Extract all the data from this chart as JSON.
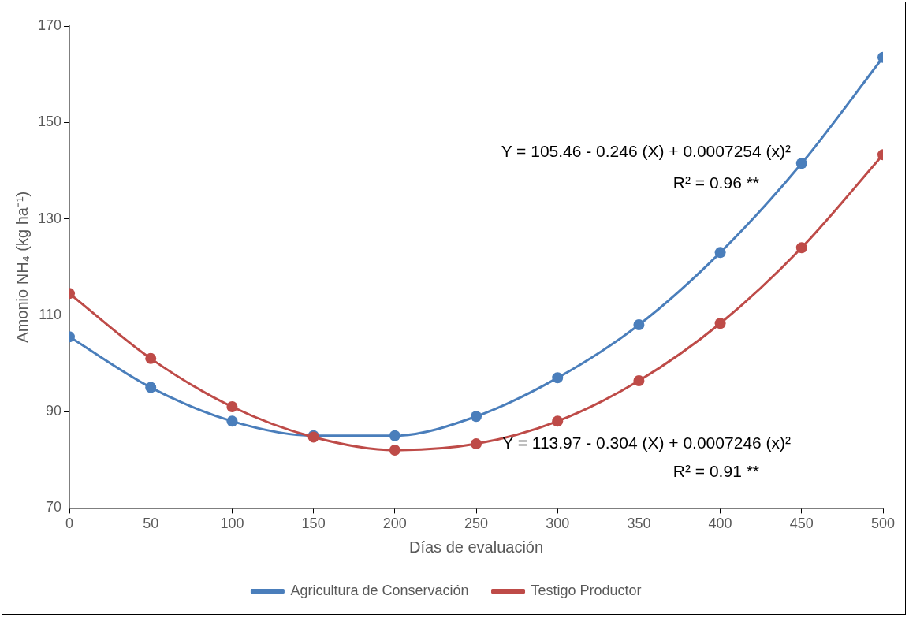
{
  "chart_data": {
    "type": "line",
    "xlabel": "Días de evaluación",
    "ylabel": "Amonio NH₄ (kg ha⁻¹)",
    "x": [
      0,
      50,
      100,
      150,
      200,
      250,
      300,
      350,
      400,
      450,
      500
    ],
    "series": [
      {
        "name": "Agricultura de Conservación",
        "color": "#4a7ebb",
        "values": [
          105.5,
          95,
          88,
          85,
          85,
          89,
          97,
          108,
          123,
          141.5,
          163.5
        ]
      },
      {
        "name": "Testigo Productor",
        "color": "#be4b48",
        "values": [
          114.5,
          101,
          91,
          84.7,
          82,
          83.3,
          88,
          96.4,
          108.3,
          124,
          143.3
        ]
      }
    ],
    "xlim": [
      0,
      500
    ],
    "xticks": [
      0,
      50,
      100,
      150,
      200,
      250,
      300,
      350,
      400,
      450,
      500
    ],
    "ylim": [
      70,
      170
    ],
    "yticks": [
      70,
      90,
      110,
      130,
      150,
      170
    ],
    "grid": false,
    "legend": "bottom",
    "marker": "circle",
    "line_style": "solid",
    "annotations": [
      "Y = 105.46 - 0.246 (X) + 0.0007254 (x)²",
      "R² = 0.96 **",
      "Y = 113.97 - 0.304 (X) + 0.0007246 (x)²",
      "R² = 0.91 **"
    ]
  }
}
